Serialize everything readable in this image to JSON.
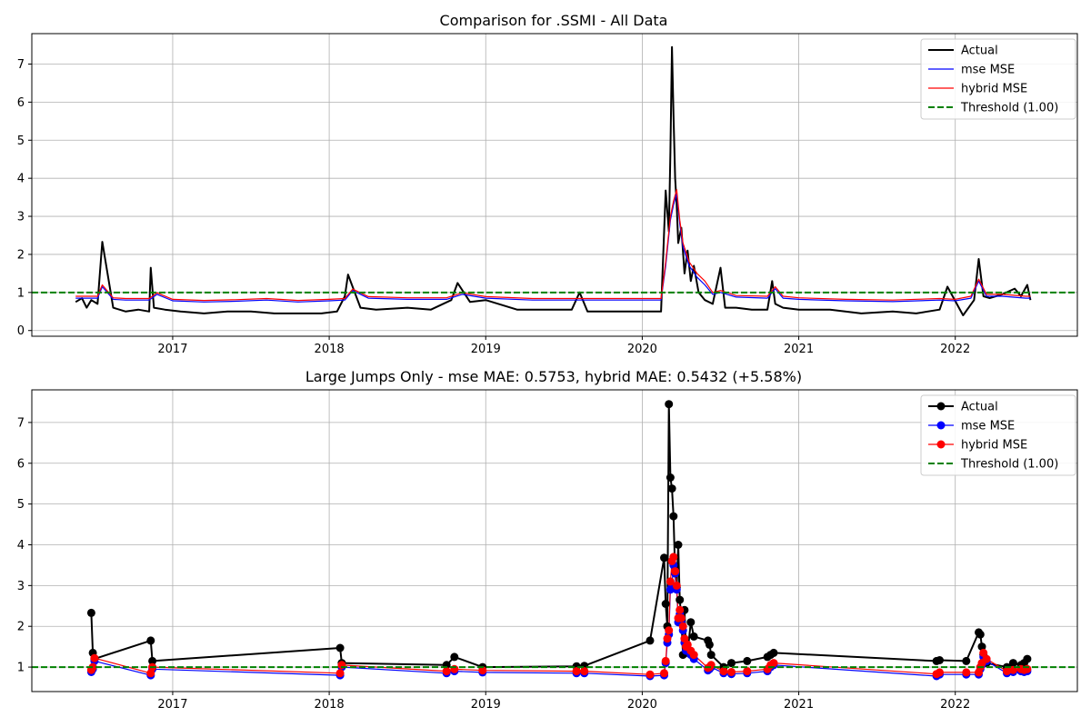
{
  "chart_data": [
    {
      "type": "line",
      "title": "Comparison for .SSMI - All Data",
      "xlabel": "",
      "ylabel": "",
      "xlim": [
        2016.1,
        2022.78
      ],
      "ylim": [
        -0.15,
        7.8
      ],
      "x_ticks": [
        2017,
        2018,
        2019,
        2020,
        2021,
        2022
      ],
      "x_tick_labels": [
        "2017",
        "2018",
        "2019",
        "2020",
        "2021",
        "2022"
      ],
      "y_ticks": [
        0,
        1,
        2,
        3,
        4,
        5,
        6,
        7
      ],
      "y_tick_labels": [
        "0",
        "1",
        "2",
        "3",
        "4",
        "5",
        "6",
        "7"
      ],
      "grid": true,
      "legend_position": "top-right",
      "threshold": {
        "label": "Threshold (1.00)",
        "value": 1.0,
        "color": "#008000"
      },
      "series": [
        {
          "name": "Actual",
          "color": "#000000",
          "x": [
            2016.38,
            2016.42,
            2016.45,
            2016.48,
            2016.52,
            2016.55,
            2016.62,
            2016.7,
            2016.78,
            2016.85,
            2016.86,
            2016.88,
            2016.95,
            2017.05,
            2017.2,
            2017.35,
            2017.5,
            2017.65,
            2017.8,
            2017.95,
            2018.05,
            2018.1,
            2018.12,
            2018.2,
            2018.3,
            2018.5,
            2018.65,
            2018.78,
            2018.82,
            2018.9,
            2019.0,
            2019.2,
            2019.4,
            2019.55,
            2019.6,
            2019.65,
            2019.8,
            2019.95,
            2020.05,
            2020.12,
            2020.15,
            2020.17,
            2020.18,
            2020.19,
            2020.2,
            2020.21,
            2020.22,
            2020.23,
            2020.25,
            2020.27,
            2020.29,
            2020.31,
            2020.33,
            2020.36,
            2020.4,
            2020.45,
            2020.5,
            2020.53,
            2020.6,
            2020.7,
            2020.8,
            2020.83,
            2020.85,
            2020.9,
            2021.0,
            2021.2,
            2021.4,
            2021.6,
            2021.75,
            2021.9,
            2021.95,
            2022.05,
            2022.12,
            2022.15,
            2022.18,
            2022.22,
            2022.3,
            2022.38,
            2022.42,
            2022.46,
            2022.48
          ],
          "values": [
            0.75,
            0.85,
            0.6,
            0.8,
            0.7,
            2.33,
            0.6,
            0.5,
            0.55,
            0.5,
            1.65,
            0.6,
            0.55,
            0.5,
            0.45,
            0.5,
            0.5,
            0.45,
            0.45,
            0.45,
            0.5,
            0.9,
            1.47,
            0.6,
            0.55,
            0.6,
            0.55,
            0.8,
            1.25,
            0.75,
            0.8,
            0.55,
            0.55,
            0.55,
            1.0,
            0.5,
            0.5,
            0.5,
            0.5,
            0.5,
            3.68,
            2.6,
            4.7,
            7.45,
            5.65,
            4.0,
            3.3,
            2.3,
            2.7,
            1.5,
            2.1,
            1.3,
            1.7,
            1.0,
            0.8,
            0.7,
            1.65,
            0.6,
            0.6,
            0.55,
            0.55,
            1.3,
            0.7,
            0.6,
            0.55,
            0.55,
            0.45,
            0.5,
            0.45,
            0.55,
            1.15,
            0.4,
            0.8,
            1.88,
            0.9,
            0.85,
            0.95,
            1.1,
            0.9,
            1.2,
            0.8
          ]
        },
        {
          "name": "mse MSE",
          "color": "#0000ff",
          "x": [
            2016.38,
            2016.45,
            2016.52,
            2016.55,
            2016.62,
            2016.7,
            2016.85,
            2016.9,
            2017.0,
            2017.2,
            2017.4,
            2017.6,
            2017.8,
            2018.0,
            2018.1,
            2018.15,
            2018.25,
            2018.5,
            2018.75,
            2018.85,
            2019.0,
            2019.3,
            2019.6,
            2019.8,
            2020.0,
            2020.12,
            2020.15,
            2020.18,
            2020.2,
            2020.22,
            2020.24,
            2020.26,
            2020.3,
            2020.35,
            2020.4,
            2020.45,
            2020.5,
            2020.6,
            2020.8,
            2020.85,
            2020.9,
            2021.0,
            2021.3,
            2021.6,
            2021.9,
            2022.0,
            2022.1,
            2022.15,
            2022.2,
            2022.3,
            2022.45,
            2022.48
          ],
          "values": [
            0.85,
            0.85,
            0.85,
            1.15,
            0.82,
            0.8,
            0.8,
            0.95,
            0.78,
            0.75,
            0.77,
            0.8,
            0.75,
            0.78,
            0.8,
            1.05,
            0.85,
            0.82,
            0.82,
            0.95,
            0.85,
            0.8,
            0.8,
            0.8,
            0.8,
            0.8,
            1.7,
            2.9,
            3.3,
            3.6,
            2.8,
            2.2,
            1.7,
            1.4,
            1.2,
            0.95,
            1.0,
            0.88,
            0.85,
            1.1,
            0.85,
            0.82,
            0.78,
            0.76,
            0.8,
            0.78,
            0.85,
            1.3,
            0.9,
            0.9,
            0.85,
            0.85
          ]
        },
        {
          "name": "hybrid MSE",
          "color": "#ff0000",
          "x": [
            2016.38,
            2016.45,
            2016.52,
            2016.55,
            2016.62,
            2016.7,
            2016.85,
            2016.9,
            2017.0,
            2017.2,
            2017.4,
            2017.6,
            2017.8,
            2018.0,
            2018.1,
            2018.15,
            2018.25,
            2018.5,
            2018.75,
            2018.85,
            2019.0,
            2019.3,
            2019.6,
            2019.8,
            2020.0,
            2020.12,
            2020.15,
            2020.18,
            2020.2,
            2020.22,
            2020.24,
            2020.26,
            2020.3,
            2020.35,
            2020.4,
            2020.45,
            2020.5,
            2020.6,
            2020.8,
            2020.85,
            2020.9,
            2021.0,
            2021.3,
            2021.6,
            2021.9,
            2022.0,
            2022.1,
            2022.15,
            2022.2,
            2022.3,
            2022.45,
            2022.48
          ],
          "values": [
            0.9,
            0.9,
            0.9,
            1.2,
            0.86,
            0.84,
            0.84,
            0.99,
            0.82,
            0.79,
            0.81,
            0.84,
            0.79,
            0.82,
            0.84,
            1.09,
            0.89,
            0.86,
            0.86,
            0.99,
            0.89,
            0.84,
            0.84,
            0.84,
            0.84,
            0.84,
            1.8,
            3.0,
            3.4,
            3.7,
            2.9,
            2.3,
            1.8,
            1.5,
            1.3,
            1.0,
            1.05,
            0.92,
            0.9,
            1.15,
            0.9,
            0.86,
            0.82,
            0.8,
            0.84,
            0.82,
            0.9,
            1.35,
            0.95,
            0.95,
            0.9,
            0.9
          ]
        }
      ]
    },
    {
      "type": "line",
      "title": "Large Jumps Only - mse MAE: 0.5753, hybrid MAE: 0.5432 (+5.58%)",
      "xlabel": "",
      "ylabel": "",
      "xlim": [
        2016.1,
        2022.78
      ],
      "ylim": [
        0.4,
        7.8
      ],
      "x_ticks": [
        2017,
        2018,
        2019,
        2020,
        2021,
        2022
      ],
      "x_tick_labels": [
        "2017",
        "2018",
        "2019",
        "2020",
        "2021",
        "2022"
      ],
      "y_ticks": [
        1,
        2,
        3,
        4,
        5,
        6,
        7
      ],
      "y_tick_labels": [
        "1",
        "2",
        "3",
        "4",
        "5",
        "6",
        "7"
      ],
      "grid": true,
      "legend_position": "top-right",
      "threshold": {
        "label": "Threshold (1.00)",
        "value": 1.0,
        "color": "#008000"
      },
      "series": [
        {
          "name": "Actual",
          "color": "#000000",
          "marker": "circle",
          "x": [
            2016.48,
            2016.49,
            2016.5,
            2016.86,
            2016.87,
            2018.07,
            2018.08,
            2018.75,
            2018.8,
            2018.98,
            2019.58,
            2019.63,
            2020.05,
            2020.14,
            2020.15,
            2020.16,
            2020.17,
            2020.18,
            2020.19,
            2020.2,
            2020.21,
            2020.22,
            2020.23,
            2020.24,
            2020.25,
            2020.26,
            2020.27,
            2020.28,
            2020.29,
            2020.31,
            2020.33,
            2020.42,
            2020.43,
            2020.44,
            2020.52,
            2020.57,
            2020.67,
            2020.8,
            2020.82,
            2020.84,
            2021.88,
            2021.9,
            2022.07,
            2022.15,
            2022.16,
            2022.17,
            2022.18,
            2022.2,
            2022.33,
            2022.37,
            2022.42,
            2022.44,
            2022.46
          ],
          "values": [
            2.33,
            1.35,
            1.2,
            1.65,
            1.15,
            1.47,
            1.1,
            1.05,
            1.25,
            1.0,
            1.02,
            1.03,
            1.65,
            3.68,
            2.55,
            2.0,
            7.45,
            5.65,
            5.38,
            4.7,
            3.3,
            2.95,
            4.0,
            2.65,
            2.2,
            1.3,
            2.4,
            1.4,
            1.35,
            2.1,
            1.75,
            1.65,
            1.55,
            1.3,
            1.0,
            1.1,
            1.15,
            1.25,
            1.3,
            1.35,
            1.15,
            1.17,
            1.15,
            1.85,
            1.8,
            1.5,
            1.3,
            1.1,
            1.0,
            1.1,
            1.05,
            1.1,
            1.2
          ]
        },
        {
          "name": "mse MSE",
          "color": "#0000ff",
          "marker": "circle",
          "x": [
            2016.48,
            2016.49,
            2016.5,
            2016.86,
            2016.87,
            2018.07,
            2018.08,
            2018.75,
            2018.8,
            2018.98,
            2019.58,
            2019.63,
            2020.05,
            2020.14,
            2020.15,
            2020.16,
            2020.17,
            2020.18,
            2020.19,
            2020.2,
            2020.21,
            2020.22,
            2020.23,
            2020.24,
            2020.25,
            2020.26,
            2020.27,
            2020.28,
            2020.29,
            2020.31,
            2020.33,
            2020.42,
            2020.43,
            2020.44,
            2020.52,
            2020.57,
            2020.67,
            2020.8,
            2020.82,
            2020.84,
            2021.88,
            2021.9,
            2022.07,
            2022.15,
            2022.16,
            2022.17,
            2022.18,
            2022.2,
            2022.33,
            2022.37,
            2022.42,
            2022.44,
            2022.46
          ],
          "values": [
            0.88,
            0.95,
            1.15,
            0.8,
            0.95,
            0.8,
            1.0,
            0.85,
            0.9,
            0.87,
            0.85,
            0.85,
            0.78,
            0.8,
            1.1,
            1.6,
            1.8,
            2.9,
            3.0,
            3.5,
            3.3,
            2.9,
            2.1,
            2.3,
            2.1,
            1.9,
            1.6,
            1.4,
            1.45,
            1.3,
            1.2,
            0.92,
            0.95,
            1.0,
            0.85,
            0.83,
            0.85,
            0.9,
            1.0,
            1.05,
            0.78,
            0.82,
            0.82,
            0.82,
            0.95,
            1.05,
            1.25,
            1.15,
            0.85,
            0.88,
            0.9,
            0.88,
            0.9
          ]
        },
        {
          "name": "hybrid MSE",
          "color": "#ff0000",
          "marker": "circle",
          "x": [
            2016.48,
            2016.49,
            2016.5,
            2016.86,
            2016.87,
            2018.07,
            2018.08,
            2018.75,
            2018.8,
            2018.98,
            2019.58,
            2019.63,
            2020.05,
            2020.14,
            2020.15,
            2020.16,
            2020.17,
            2020.18,
            2020.19,
            2020.2,
            2020.21,
            2020.22,
            2020.23,
            2020.24,
            2020.25,
            2020.26,
            2020.27,
            2020.28,
            2020.29,
            2020.31,
            2020.33,
            2020.42,
            2020.43,
            2020.44,
            2020.52,
            2020.57,
            2020.67,
            2020.8,
            2020.82,
            2020.84,
            2021.88,
            2021.9,
            2022.07,
            2022.15,
            2022.16,
            2022.17,
            2022.18,
            2022.2,
            2022.33,
            2022.37,
            2022.42,
            2022.44,
            2022.46
          ],
          "values": [
            0.93,
            1.0,
            1.22,
            0.85,
            1.0,
            0.85,
            1.05,
            0.9,
            0.95,
            0.92,
            0.9,
            0.9,
            0.82,
            0.85,
            1.15,
            1.7,
            1.9,
            3.1,
            3.6,
            3.7,
            3.35,
            3.0,
            2.2,
            2.4,
            2.2,
            2.0,
            1.7,
            1.5,
            1.55,
            1.4,
            1.3,
            0.98,
            1.0,
            1.05,
            0.9,
            0.88,
            0.9,
            0.95,
            1.05,
            1.1,
            0.83,
            0.87,
            0.87,
            0.87,
            1.0,
            1.1,
            1.35,
            1.2,
            0.9,
            0.93,
            0.95,
            0.93,
            0.95
          ]
        }
      ]
    }
  ]
}
